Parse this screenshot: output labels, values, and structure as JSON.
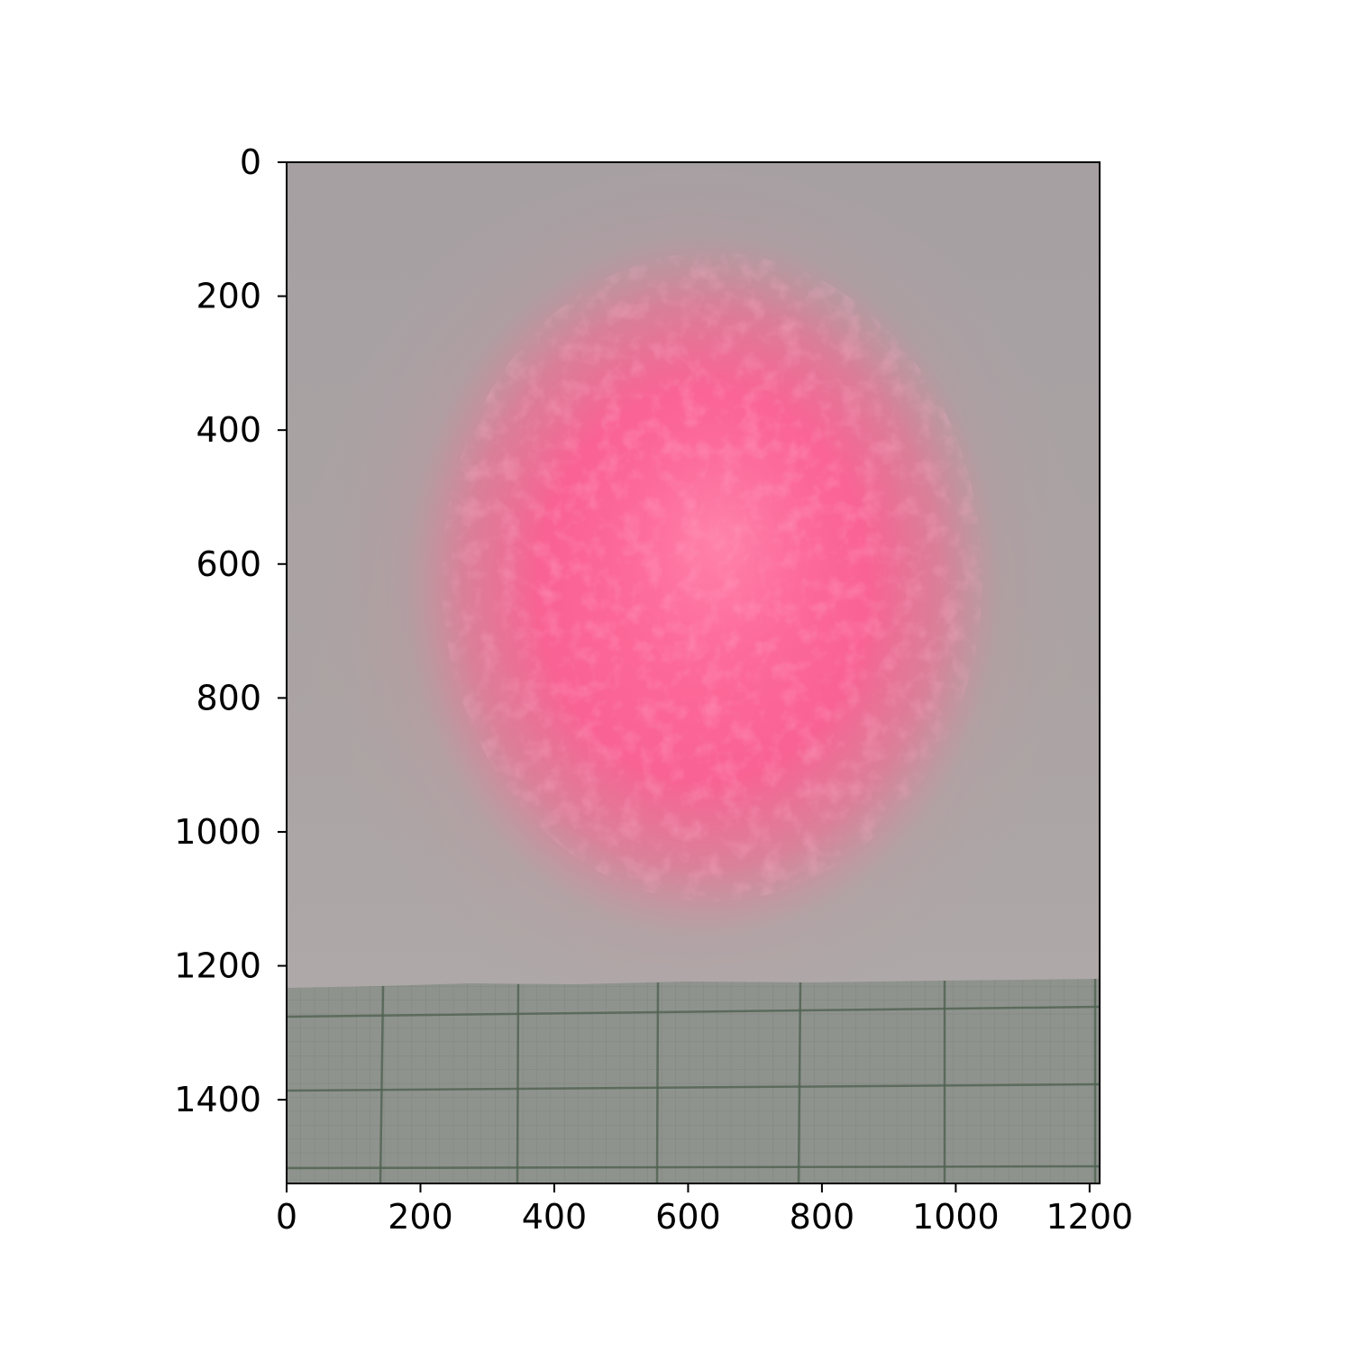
{
  "figure": {
    "type": "image",
    "content": "photograph of a diffuse red-pink laser spot on grey paper, with graph paper along the bottom edge",
    "colors": {
      "background": "#ffffff",
      "paper": "#a7a0a2",
      "spot_core": "#ff5f96",
      "spot_halo": "#d8848f",
      "graph_paper": "#8f938e",
      "grid_major": "#4f6150",
      "grid_minor": "#6f7a70",
      "axes": "#000000"
    }
  },
  "chart_data": {
    "type": "image",
    "title": "",
    "xlabel": "",
    "ylabel": "",
    "xlim": [
      0,
      1215
    ],
    "ylim": [
      1525,
      0
    ],
    "y_inverted": true,
    "grid": false,
    "x_ticks": [
      "0",
      "200",
      "400",
      "600",
      "800",
      "1000",
      "1200"
    ],
    "y_ticks": [
      "0",
      "200",
      "400",
      "600",
      "800",
      "1000",
      "1200",
      "1400"
    ]
  }
}
